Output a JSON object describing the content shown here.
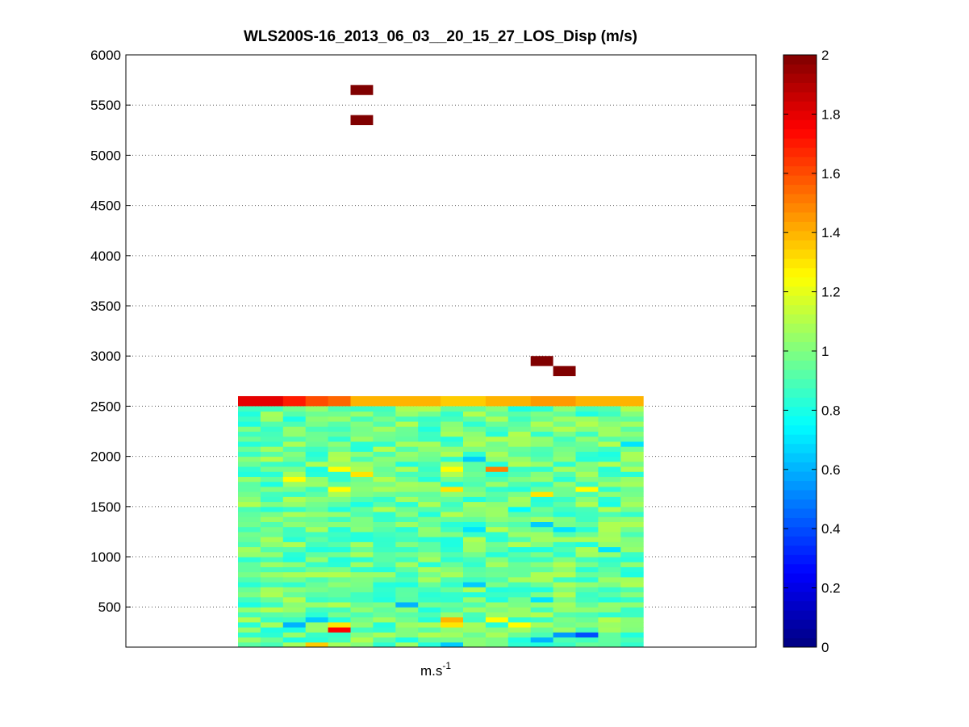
{
  "chart_data": {
    "type": "heatmap",
    "title": "WLS200S-16_2013_06_03__20_15_27_LOS_Disp (m/s)",
    "xlabel_base": "m.s",
    "xlabel_exponent": "-1",
    "ylabel": "",
    "ylim": [
      100,
      6000
    ],
    "y_ticks": [
      "500",
      "1000",
      "1500",
      "2000",
      "2500",
      "3000",
      "3500",
      "4000",
      "4500",
      "5000",
      "5500",
      "6000"
    ],
    "y_tick_values": [
      500,
      1000,
      1500,
      2000,
      2500,
      3000,
      3500,
      4000,
      4500,
      5000,
      5500,
      6000
    ],
    "grid": "y-dotted",
    "colormap": "jet",
    "clim": [
      0,
      2
    ],
    "colorbar_ticks": [
      "0",
      "0.2",
      "0.4",
      "0.6",
      "0.8",
      "1",
      "1.2",
      "1.4",
      "1.6",
      "1.8",
      "2"
    ],
    "colorbar_tick_values": [
      0,
      0.2,
      0.4,
      0.6,
      0.8,
      1.0,
      1.2,
      1.4,
      1.6,
      1.8,
      2.0
    ],
    "columns": 18,
    "range_gate_m": 50,
    "body_top_m": 2500,
    "body_bottom_m": 100,
    "top_row": {
      "range_m": [
        2500,
        2600
      ],
      "values": [
        1.8,
        1.8,
        1.7,
        1.6,
        1.55,
        1.4,
        1.4,
        1.4,
        1.4,
        1.35,
        1.35,
        1.4,
        1.4,
        1.45,
        1.45,
        1.4,
        1.4,
        1.4
      ]
    },
    "body_value_mean": 0.95,
    "highlight_cells": [
      {
        "col": 2,
        "range_m": [
          1750,
          1800
        ],
        "value": 1.25
      },
      {
        "col": 3,
        "range_m": [
          1850,
          1900
        ],
        "value": 0.8
      },
      {
        "col": 4,
        "range_m": [
          1850,
          1900
        ],
        "value": 1.25
      },
      {
        "col": 5,
        "range_m": [
          1800,
          1850
        ],
        "value": 1.3
      },
      {
        "col": 9,
        "range_m": [
          1850,
          1900
        ],
        "value": 1.25
      },
      {
        "col": 10,
        "range_m": [
          1950,
          2000
        ],
        "value": 0.65
      },
      {
        "col": 11,
        "range_m": [
          1850,
          1900
        ],
        "value": 1.5
      },
      {
        "col": 9,
        "range_m": [
          1650,
          1700
        ],
        "value": 1.3
      },
      {
        "col": 4,
        "range_m": [
          1650,
          1700
        ],
        "value": 1.25
      },
      {
        "col": 17,
        "range_m": [
          2100,
          2150
        ],
        "value": 0.7
      },
      {
        "col": 4,
        "range_m": [
          250,
          300
        ],
        "value": 1.75
      },
      {
        "col": 4,
        "range_m": [
          300,
          350
        ],
        "value": 1.3
      },
      {
        "col": 3,
        "range_m": [
          350,
          400
        ],
        "value": 0.65
      },
      {
        "col": 2,
        "range_m": [
          300,
          350
        ],
        "value": 0.6
      },
      {
        "col": 9,
        "range_m": [
          350,
          400
        ],
        "value": 1.4
      },
      {
        "col": 9,
        "range_m": [
          300,
          350
        ],
        "value": 1.3
      },
      {
        "col": 11,
        "range_m": [
          350,
          400
        ],
        "value": 1.25
      },
      {
        "col": 12,
        "range_m": [
          300,
          350
        ],
        "value": 1.25
      },
      {
        "col": 15,
        "range_m": [
          200,
          250
        ],
        "value": 0.4
      },
      {
        "col": 14,
        "range_m": [
          200,
          250
        ],
        "value": 0.55
      },
      {
        "col": 13,
        "range_m": [
          150,
          200
        ],
        "value": 0.6
      },
      {
        "col": 9,
        "range_m": [
          100,
          150
        ],
        "value": 0.65
      },
      {
        "col": 3,
        "range_m": [
          100,
          150
        ],
        "value": 1.35
      },
      {
        "col": 7,
        "range_m": [
          500,
          550
        ],
        "value": 0.6
      },
      {
        "col": 10,
        "range_m": [
          700,
          750
        ],
        "value": 0.65
      },
      {
        "col": 13,
        "range_m": [
          550,
          600
        ],
        "value": 0.7
      },
      {
        "col": 10,
        "range_m": [
          1250,
          1300
        ],
        "value": 0.7
      },
      {
        "col": 13,
        "range_m": [
          1300,
          1350
        ],
        "value": 0.65
      },
      {
        "col": 14,
        "range_m": [
          1250,
          1300
        ],
        "value": 0.7
      },
      {
        "col": 16,
        "range_m": [
          1050,
          1100
        ],
        "value": 0.7
      },
      {
        "col": 13,
        "range_m": [
          1600,
          1650
        ],
        "value": 1.3
      },
      {
        "col": 15,
        "range_m": [
          1650,
          1700
        ],
        "value": 1.25
      },
      {
        "col": 12,
        "range_m": [
          1450,
          1500
        ],
        "value": 0.75
      }
    ],
    "isolated_cells": [
      {
        "col": 5,
        "range_m": [
          5600,
          5700
        ],
        "value": 2.0
      },
      {
        "col": 5,
        "range_m": [
          5300,
          5400
        ],
        "value": 2.0
      },
      {
        "col": 13,
        "range_m": [
          2900,
          3000
        ],
        "value": 2.0
      },
      {
        "col": 14,
        "range_m": [
          2800,
          2900
        ],
        "value": 2.0
      }
    ]
  }
}
